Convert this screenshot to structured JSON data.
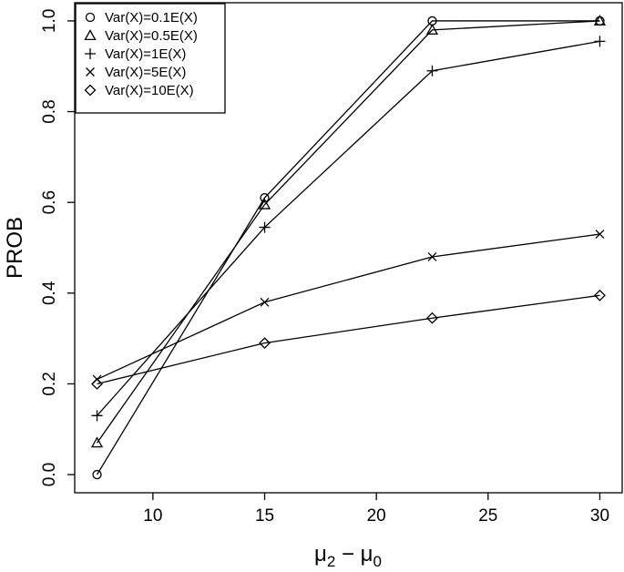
{
  "chart_data": {
    "type": "line",
    "xlabel_main": "μ",
    "xlabel_sub1": "2",
    "xlabel_minus": " − ",
    "xlabel_main2": "μ",
    "xlabel_sub2": "0",
    "ylabel": "PROB",
    "x": [
      7.5,
      15,
      22.5,
      30
    ],
    "xlim": [
      6.5,
      31
    ],
    "ylim": [
      -0.04,
      1.04
    ],
    "xticks": [
      10,
      15,
      20,
      25,
      30
    ],
    "yticks": [
      0.0,
      0.2,
      0.4,
      0.6,
      0.8,
      1.0
    ],
    "xtick_labels": [
      "10",
      "15",
      "20",
      "25",
      "30"
    ],
    "ytick_labels": [
      "0.0",
      "0.2",
      "0.4",
      "0.6",
      "0.8",
      "1.0"
    ],
    "legend_position": "top-left",
    "series": [
      {
        "name": "Var(X)=0.1E(X)",
        "marker": "circle",
        "values": [
          0.0,
          0.61,
          1.0,
          1.0
        ]
      },
      {
        "name": "Var(X)=0.5E(X)",
        "marker": "triangle",
        "values": [
          0.07,
          0.595,
          0.98,
          1.0
        ]
      },
      {
        "name": "Var(X)=1E(X)",
        "marker": "plus",
        "values": [
          0.13,
          0.545,
          0.89,
          0.955
        ]
      },
      {
        "name": "Var(X)=5E(X)",
        "marker": "cross",
        "values": [
          0.21,
          0.38,
          0.48,
          0.53
        ]
      },
      {
        "name": "Var(X)=10E(X)",
        "marker": "diamond",
        "values": [
          0.2,
          0.29,
          0.345,
          0.395
        ]
      }
    ]
  }
}
